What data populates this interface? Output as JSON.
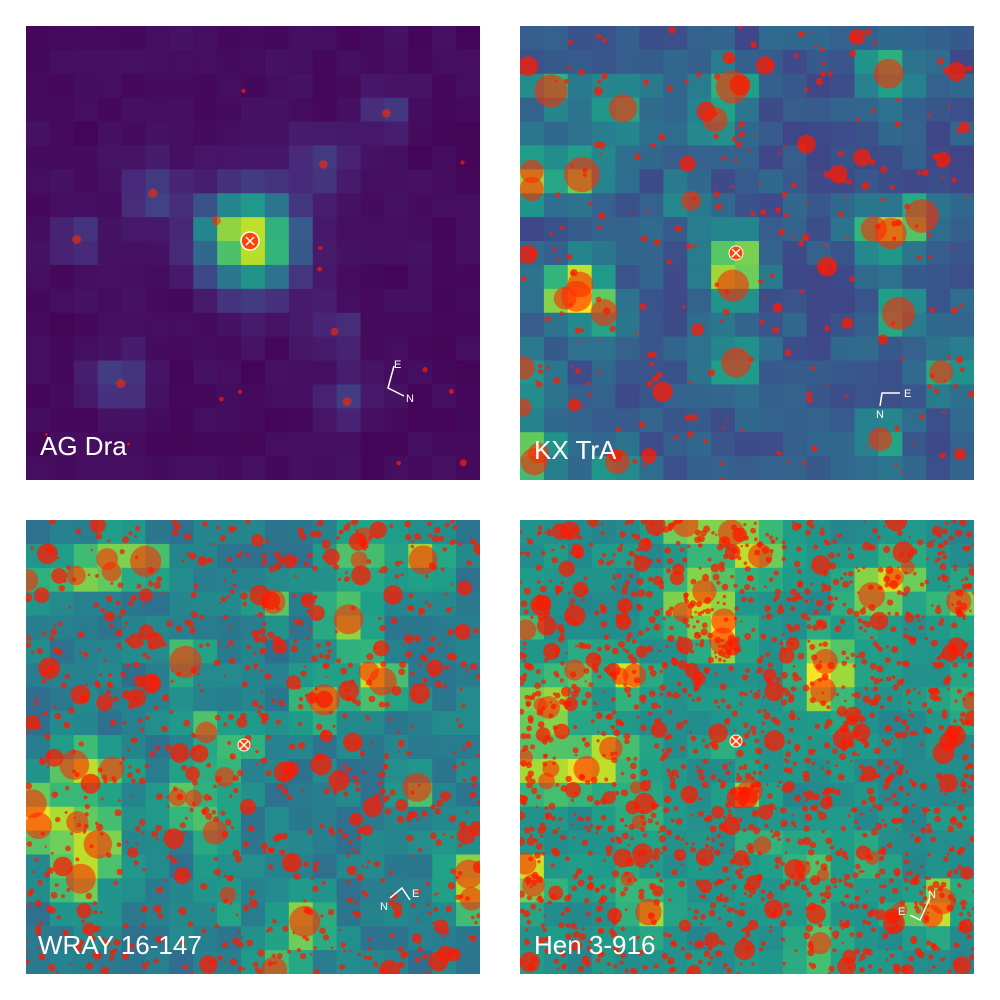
{
  "panels": [
    {
      "label": "AG Dra",
      "compass": [
        "E",
        "N"
      ]
    },
    {
      "label": "KX TrA",
      "compass": [
        "E",
        "N"
      ]
    },
    {
      "label": "WRAY 16-147",
      "compass": [
        "E",
        "N"
      ]
    },
    {
      "label": "Hen 3-916",
      "compass": [
        "E",
        "N"
      ]
    }
  ]
}
